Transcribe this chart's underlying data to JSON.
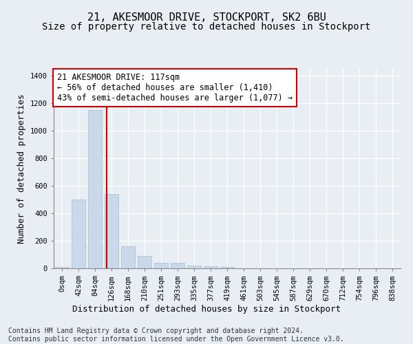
{
  "title": "21, AKESMOOR DRIVE, STOCKPORT, SK2 6BU",
  "subtitle": "Size of property relative to detached houses in Stockport",
  "xlabel": "Distribution of detached houses by size in Stockport",
  "ylabel": "Number of detached properties",
  "bar_color": "#c9d9ea",
  "bar_edge_color": "#aabcce",
  "background_color": "#e8eef4",
  "plot_bg_color": "#e8eef4",
  "grid_color": "#ffffff",
  "categories": [
    "0sqm",
    "42sqm",
    "84sqm",
    "126sqm",
    "168sqm",
    "210sqm",
    "251sqm",
    "293sqm",
    "335sqm",
    "377sqm",
    "419sqm",
    "461sqm",
    "503sqm",
    "545sqm",
    "587sqm",
    "629sqm",
    "670sqm",
    "712sqm",
    "754sqm",
    "796sqm",
    "838sqm"
  ],
  "bar_heights": [
    10,
    500,
    1150,
    540,
    160,
    90,
    38,
    38,
    20,
    15,
    8,
    2,
    0,
    0,
    0,
    0,
    0,
    0,
    0,
    0,
    0
  ],
  "ylim": [
    0,
    1450
  ],
  "yticks": [
    0,
    200,
    400,
    600,
    800,
    1000,
    1200,
    1400
  ],
  "vline_x": 2.72,
  "vline_color": "#cc0000",
  "annotation_text": "21 AKESMOOR DRIVE: 117sqm\n← 56% of detached houses are smaller (1,410)\n43% of semi-detached houses are larger (1,077) →",
  "annotation_box_facecolor": "#ffffff",
  "annotation_box_edgecolor": "#cc0000",
  "footer_text": "Contains HM Land Registry data © Crown copyright and database right 2024.\nContains public sector information licensed under the Open Government Licence v3.0.",
  "title_fontsize": 11,
  "subtitle_fontsize": 10,
  "xlabel_fontsize": 9,
  "ylabel_fontsize": 9,
  "tick_fontsize": 7.5,
  "annotation_fontsize": 8.5,
  "footer_fontsize": 7
}
